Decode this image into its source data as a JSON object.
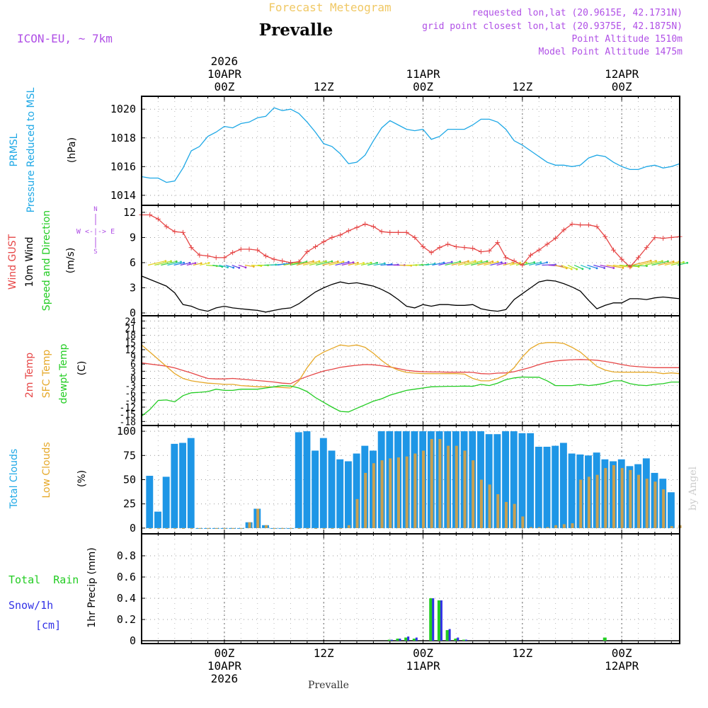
{
  "header": {
    "title": "Forecast Meteogram",
    "location": "Prevalle",
    "model": "ICON-EU, ~ 7km",
    "requested": "requested lon,lat (20.9615E, 42.1731N)",
    "grid_point": "grid point closest lon,lat (20.9375E, 42.1875N)",
    "point_altitude": "Point Altitude 1510m",
    "model_altitude": "Model Point Altitude 1475m"
  },
  "footer": {
    "location": "Prevalle",
    "credit": "by Angel"
  },
  "time_axis": {
    "top_labels": [
      {
        "h": 0,
        "lines": [
          "2026",
          "10APR",
          "00Z"
        ]
      },
      {
        "h": 12,
        "lines": [
          "12Z"
        ]
      },
      {
        "h": 24,
        "lines": [
          "11APR",
          "00Z"
        ]
      },
      {
        "h": 36,
        "lines": [
          "12Z"
        ]
      },
      {
        "h": 48,
        "lines": [
          "12APR",
          "00Z"
        ]
      },
      {
        "h": 60,
        "lines": [
          "12Z"
        ]
      }
    ],
    "bottom_labels": [
      {
        "h": 0,
        "lines": [
          "00Z",
          "10APR",
          "2026"
        ]
      },
      {
        "h": 12,
        "lines": [
          "12Z"
        ]
      },
      {
        "h": 24,
        "lines": [
          "00Z",
          "11APR"
        ]
      },
      {
        "h": 36,
        "lines": [
          "12Z"
        ]
      },
      {
        "h": 48,
        "lines": [
          "00Z",
          "12APR"
        ]
      },
      {
        "h": 60,
        "lines": [
          "12Z"
        ]
      }
    ]
  },
  "panel_labels": {
    "pressure": {
      "name": "PRMSL",
      "desc": "Pressure Reduced to MSL",
      "unit": "(hPa)"
    },
    "wind": {
      "gust": "Wind GUST",
      "wind10": "10m Wind",
      "speed_dir": "Speed and Direction",
      "unit": "(m/s)",
      "compass_n": "N",
      "compass_s": "S",
      "compass_ew": "W <-|-> E"
    },
    "temp": {
      "t2m": "2m Temp",
      "sfc": "SFC Temp",
      "dewpt": "dewpt Temp",
      "unit": "(C)"
    },
    "clouds": {
      "total": "Total Clouds",
      "low": "Low Clouds",
      "unit": "(%)"
    },
    "precip": {
      "rain": "Total  Rain",
      "snow": "Snow/1h",
      "cm": "[cm]",
      "title": "1hr Precip (mm)"
    }
  },
  "colors": {
    "pressure": "#1ea8e6",
    "gust": "#e64646",
    "wind": "#000000",
    "t2m": "#e64646",
    "sfc": "#e6a828",
    "dewpt": "#22cc22",
    "total_clouds": "#1e96e6",
    "low_clouds": "#c8a050",
    "rain": "#22cc22",
    "snow": "#3232e6",
    "label_purple": "#b050e6",
    "title_gold": "#f0c864"
  },
  "chart_data": [
    {
      "type": "line",
      "title": "PRMSL Pressure Reduced to MSL",
      "ylabel": "(hPa)",
      "x_range_hours": [
        -10,
        55
      ],
      "ylim": [
        1013.5,
        1020.7
      ],
      "yticks": [
        1014,
        1016,
        1018,
        1020
      ],
      "series": [
        {
          "name": "PRMSL",
          "x_start": -10,
          "step": 1,
          "values": [
            1015.3,
            1015.2,
            1015.2,
            1014.9,
            1015.0,
            1015.9,
            1017.1,
            1017.4,
            1018.1,
            1018.4,
            1018.8,
            1018.7,
            1019.0,
            1019.1,
            1019.4,
            1019.5,
            1020.1,
            1019.9,
            1020.0,
            1019.7,
            1019.1,
            1018.4,
            1017.6,
            1017.4,
            1016.9,
            1016.2,
            1016.3,
            1016.8,
            1017.8,
            1018.7,
            1019.2,
            1018.9,
            1018.6,
            1018.5,
            1018.6,
            1017.9,
            1018.1,
            1018.6,
            1018.6,
            1018.6,
            1018.9,
            1019.3,
            1019.3,
            1019.1,
            1018.6,
            1017.8,
            1017.5,
            1017.1,
            1016.7,
            1016.3,
            1016.1,
            1016.1,
            1016.0,
            1016.1,
            1016.6,
            1016.8,
            1016.7,
            1016.3,
            1016.0,
            1015.8,
            1015.8,
            1016.0,
            1016.1,
            1015.9,
            1016.0,
            1016.2,
            1016.1,
            1016.0,
            1015.9,
            1015.7,
            1015.5,
            1015.1,
            1014.9,
            1014.8,
            1014.5,
            1014.2,
            1014.0,
            1014.1,
            1014.3
          ]
        }
      ]
    },
    {
      "type": "line",
      "title": "Wind GUST / 10m Wind Speed and Direction",
      "ylabel": "(m/s)",
      "x_range_hours": [
        -10,
        55
      ],
      "ylim": [
        0,
        12.5
      ],
      "yticks": [
        0,
        3,
        6,
        9,
        12
      ],
      "series": [
        {
          "name": "Wind GUST",
          "x_start": -10,
          "step": 1,
          "values": [
            11.7,
            11.7,
            11.2,
            10.3,
            9.7,
            9.6,
            7.8,
            6.9,
            6.8,
            6.6,
            6.6,
            7.2,
            7.6,
            7.6,
            7.5,
            6.8,
            6.4,
            6.2,
            6.0,
            6.1,
            7.3,
            7.9,
            8.5,
            9.0,
            9.3,
            9.8,
            10.2,
            10.6,
            10.3,
            9.7,
            9.6,
            9.6,
            9.6,
            9.0,
            7.9,
            7.2,
            7.8,
            8.2,
            7.9,
            7.8,
            7.7,
            7.3,
            7.4,
            8.4,
            6.6,
            6.2,
            5.7,
            6.9,
            7.5,
            8.2,
            8.9,
            9.9,
            10.6,
            10.5,
            10.5,
            10.3,
            9.1,
            7.5,
            6.4,
            5.5,
            6.6,
            7.8,
            9.0,
            8.9,
            9.0,
            9.1,
            9.5,
            9.4,
            9.1,
            8.3,
            7.6,
            6.8,
            7.6,
            8.5,
            9.2,
            9.5,
            10.4,
            11.1,
            11.0,
            10.4,
            9.0,
            8.3,
            7.7,
            6.0
          ]
        },
        {
          "name": "10m Wind",
          "x_start": -10,
          "step": 1,
          "values": [
            4.4,
            4.0,
            3.6,
            3.2,
            2.4,
            1.0,
            0.8,
            0.4,
            0.2,
            0.6,
            0.8,
            0.6,
            0.5,
            0.4,
            0.3,
            0.1,
            0.3,
            0.5,
            0.6,
            1.1,
            1.8,
            2.5,
            3.0,
            3.4,
            3.7,
            3.5,
            3.6,
            3.4,
            3.2,
            2.8,
            2.3,
            1.6,
            0.8,
            0.6,
            1.0,
            0.8,
            1.0,
            1.0,
            0.9,
            0.9,
            1.0,
            0.5,
            0.3,
            0.2,
            0.4,
            1.6,
            2.3,
            3.0,
            3.7,
            3.9,
            3.8,
            3.5,
            3.1,
            2.6,
            1.5,
            0.5,
            0.9,
            1.2,
            1.2,
            1.7,
            1.7,
            1.6,
            1.8,
            1.9,
            1.8,
            1.7,
            1.5,
            1.2,
            1.2,
            1.2,
            1.4,
            2.3,
            3.2,
            3.6,
            3.9,
            4.4,
            4.4,
            3.9,
            3.8,
            3.5,
            3.1,
            2.8,
            2.0,
            0.9
          ]
        }
      ],
      "direction_deg": [
        118,
        118,
        118,
        118,
        118,
        118,
        118,
        118,
        118,
        118,
        80,
        70,
        60,
        55,
        50,
        55,
        70,
        80,
        88,
        95,
        100,
        108,
        112,
        115,
        118,
        118,
        118,
        118,
        118,
        118,
        118,
        118,
        118,
        118,
        118,
        118,
        110,
        100,
        95,
        90,
        85,
        90,
        95,
        100,
        110,
        115,
        118,
        118,
        118,
        118,
        118,
        118,
        118,
        118,
        118,
        118,
        118,
        118,
        118,
        118,
        118,
        118,
        95,
        80,
        60,
        50,
        45,
        45,
        50,
        55,
        60,
        65,
        70,
        75,
        80,
        85,
        118,
        118,
        118,
        118,
        118,
        118,
        118,
        118,
        118,
        118,
        118
      ]
    },
    {
      "type": "line",
      "title": "2m Temp / SFC Temp / dewpt Temp",
      "ylabel": "(C)",
      "x_range_hours": [
        -10,
        55
      ],
      "ylim": [
        -18.5,
        25
      ],
      "yticks": [
        -18,
        -15,
        -12,
        -9,
        -6,
        -3,
        0,
        3,
        6,
        9,
        12,
        15,
        18,
        21,
        24
      ],
      "series": [
        {
          "name": "2m Temp",
          "x_start": -10,
          "step": 1,
          "values": [
            6.5,
            6.0,
            5.6,
            5.1,
            4.4,
            3.3,
            2.3,
            1.1,
            0.0,
            -0.2,
            -0.2,
            0.0,
            -0.3,
            -0.6,
            -0.9,
            -1.2,
            -1.5,
            -2.0,
            -2.2,
            -0.5,
            0.8,
            2.0,
            3.1,
            3.8,
            4.6,
            5.1,
            5.5,
            5.8,
            5.7,
            5.3,
            4.8,
            4.1,
            3.4,
            3.0,
            2.8,
            2.7,
            2.7,
            2.6,
            2.6,
            2.6,
            2.5,
            2.0,
            1.9,
            2.2,
            2.3,
            2.8,
            3.7,
            4.6,
            5.8,
            6.7,
            7.3,
            7.6,
            7.8,
            7.9,
            7.8,
            7.6,
            7.1,
            6.5,
            5.8,
            5.2,
            4.9,
            4.7,
            4.5,
            4.5,
            4.5,
            4.5,
            4.4,
            4.2,
            4.5,
            4.1,
            3.7,
            5.5,
            7.5,
            9.0,
            11.0,
            12.0,
            13.0,
            13.6,
            13.8,
            13.7,
            13.4,
            12.8,
            11.6,
            10.1
          ]
        },
        {
          "name": "SFC Temp",
          "x_start": -10,
          "step": 1,
          "values": [
            14.0,
            11.0,
            8.0,
            5.0,
            2.0,
            0.0,
            -1.0,
            -1.5,
            -2.0,
            -2.2,
            -2.5,
            -2.5,
            -3.0,
            -3.2,
            -3.5,
            -3.5,
            -3.6,
            -3.8,
            -4.0,
            -1.0,
            4.5,
            9.0,
            11.0,
            12.5,
            14.0,
            13.5,
            14.0,
            13.0,
            10.5,
            7.5,
            5.0,
            3.5,
            2.5,
            2.2,
            2.0,
            2.0,
            2.0,
            2.0,
            2.0,
            1.8,
            0.0,
            -1.0,
            -1.0,
            0.0,
            1.5,
            4.5,
            9.0,
            12.5,
            14.5,
            15.0,
            15.0,
            14.6,
            13.0,
            11.0,
            8.0,
            5.0,
            3.5,
            2.7,
            2.6,
            2.6,
            2.6,
            2.6,
            2.5,
            2.0,
            2.3,
            2.0,
            1.8,
            1.4,
            1.6,
            1.0,
            0.5,
            5.0,
            10.0,
            14.0,
            18.0,
            21.0,
            22.5,
            23.0,
            22.0,
            20.5,
            18.5,
            16.5,
            14.0,
            11.0
          ]
        },
        {
          "name": "dewpt Temp",
          "x_start": -10,
          "step": 1,
          "values": [
            -15.8,
            -13.0,
            -9.2,
            -9.0,
            -9.8,
            -7.2,
            -6.0,
            -5.8,
            -5.5,
            -4.5,
            -5.0,
            -5.0,
            -4.5,
            -4.5,
            -4.5,
            -4.0,
            -3.5,
            -3.0,
            -3.2,
            -4.0,
            -5.5,
            -8.0,
            -10.0,
            -12.0,
            -13.8,
            -14.0,
            -12.5,
            -11.0,
            -9.5,
            -8.5,
            -7.0,
            -6.0,
            -5.0,
            -4.5,
            -4.0,
            -3.5,
            -3.4,
            -3.3,
            -3.3,
            -3.2,
            -3.3,
            -2.5,
            -3.0,
            -2.0,
            -0.5,
            0.2,
            0.6,
            0.5,
            0.5,
            -1.0,
            -3.0,
            -3.0,
            -3.0,
            -2.5,
            -3.0,
            -2.6,
            -2.0,
            -1.0,
            -1.0,
            -2.2,
            -2.8,
            -3.0,
            -2.5,
            -2.2,
            -1.5,
            -1.5,
            -1.8,
            -1.5,
            -1.2,
            -0.5,
            0.5,
            1.5,
            2.5,
            2.8,
            2.8,
            2.5,
            2.0,
            2.0,
            1.5,
            1.0,
            0.7,
            1.5,
            2.5,
            3.0
          ]
        }
      ]
    },
    {
      "type": "bar",
      "title": "Total Clouds / Low Clouds",
      "ylabel": "(%)",
      "x_range_hours": [
        -10,
        55
      ],
      "ylim": [
        -3,
        103
      ],
      "yticks": [
        0,
        25,
        50,
        75,
        100
      ],
      "series": [
        {
          "name": "Total Clouds",
          "x_start": -10,
          "step": 1,
          "values": [
            29,
            54,
            17,
            53,
            87,
            88,
            93,
            0,
            0,
            0,
            0,
            0,
            0,
            6,
            20,
            3,
            0,
            0,
            0,
            99,
            100,
            80,
            93,
            80,
            71,
            69,
            77,
            85,
            80,
            100,
            100,
            100,
            100,
            100,
            100,
            100,
            100,
            100,
            100,
            100,
            100,
            100,
            97,
            97,
            100,
            100,
            98,
            98,
            84,
            84,
            85,
            88,
            77,
            76,
            75,
            78,
            71,
            69,
            71,
            64,
            66,
            72,
            57,
            51,
            37,
            82,
            55,
            17,
            5,
            25,
            28,
            25,
            23,
            27,
            41,
            22,
            41,
            78,
            66,
            86,
            78,
            100
          ]
        },
        {
          "name": "Low Clouds",
          "x_start": -10,
          "step": 1,
          "values": [
            0,
            0,
            0,
            0,
            0,
            0,
            0,
            0,
            0,
            0,
            0,
            0,
            0,
            6,
            20,
            3,
            0,
            0,
            0,
            0,
            0,
            0,
            0,
            0,
            0,
            3,
            30,
            57,
            67,
            70,
            72,
            73,
            74,
            77,
            80,
            92,
            92,
            85,
            85,
            80,
            70,
            50,
            45,
            35,
            27,
            25,
            12,
            1,
            1,
            1,
            3,
            4,
            5,
            50,
            53,
            55,
            62,
            65,
            62,
            60,
            55,
            51,
            48,
            40,
            2,
            3,
            7,
            12,
            14,
            20,
            26,
            26,
            16,
            22,
            28,
            20,
            45,
            36,
            6
          ]
        }
      ]
    },
    {
      "type": "bar",
      "title": "1hr Precip (mm)",
      "ylabel": "1hr Precip (mm)",
      "x_range_hours": [
        -10,
        55
      ],
      "ylim": [
        0,
        0.98
      ],
      "yticks": [
        0,
        0.2,
        0.4,
        0.6,
        0.8
      ],
      "series": [
        {
          "name": "Total Rain",
          "x_start": 20,
          "step": 1,
          "values": [
            0.01,
            0.02,
            0.03,
            0.02,
            0.0,
            0.4,
            0.38,
            0.1,
            0.02,
            0.01
          ]
        },
        {
          "name": "Snow/1h",
          "x_start": 20,
          "step": 1,
          "values": [
            0.01,
            0.02,
            0.04,
            0.03,
            0.0,
            0.4,
            0.38,
            0.11,
            0.03,
            0.01
          ]
        },
        {
          "name": "Total Rain (late)",
          "x_start": 46,
          "step": 1,
          "values": [
            0.03
          ]
        }
      ]
    }
  ]
}
